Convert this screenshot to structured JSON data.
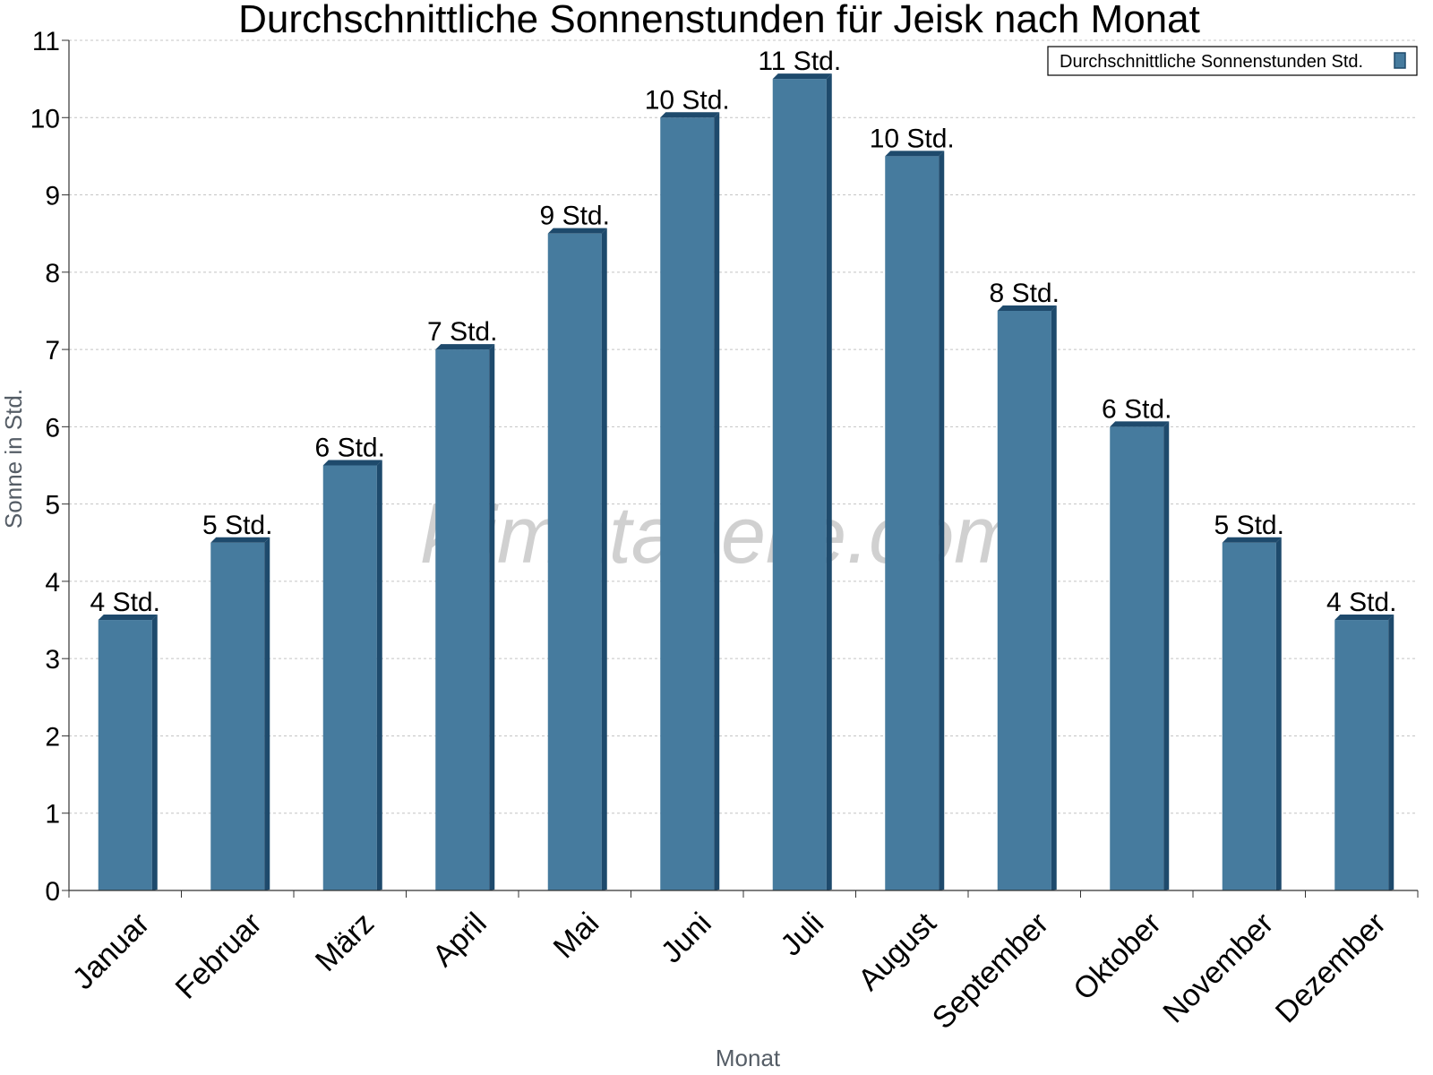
{
  "chart_data": {
    "type": "bar",
    "title": "Durchschnittliche Sonnenstunden für Jeisk nach Monat",
    "xlabel": "Monat",
    "ylabel": "Sonne in Std.",
    "ylim": [
      0,
      11
    ],
    "yticks": [
      0,
      1,
      2,
      3,
      4,
      5,
      6,
      7,
      8,
      9,
      10,
      11
    ],
    "grid": true,
    "legend_position": "top-right",
    "categories": [
      "Januar",
      "Februar",
      "März",
      "April",
      "Mai",
      "Juni",
      "Juli",
      "August",
      "September",
      "Oktober",
      "November",
      "Dezember"
    ],
    "series": [
      {
        "name": "Durchschnittliche Sonnenstunden Std.",
        "values": [
          3.5,
          4.5,
          5.5,
          7.0,
          8.5,
          10.0,
          10.5,
          9.5,
          7.5,
          6.0,
          4.5,
          3.5
        ],
        "data_labels": [
          "4 Std.",
          "5 Std.",
          "6 Std.",
          "7 Std.",
          "9 Std.",
          "10 Std.",
          "11 Std.",
          "10 Std.",
          "8 Std.",
          "6 Std.",
          "5 Std.",
          "4 Std."
        ],
        "color": "#467b9e",
        "side_color": "#1e4a6c"
      }
    ],
    "watermark": "klimatabelle.com"
  }
}
